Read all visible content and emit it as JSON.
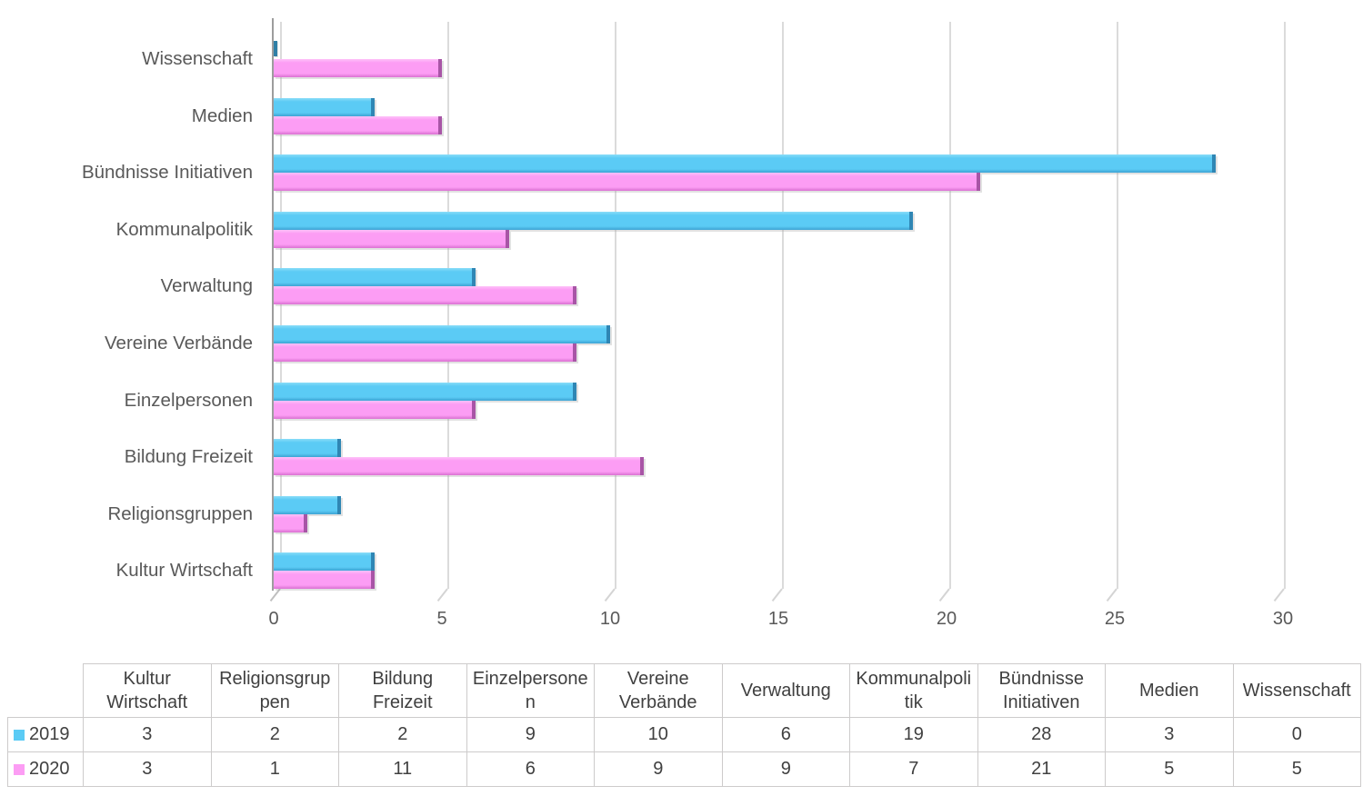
{
  "chart_data": {
    "type": "bar",
    "orientation": "horizontal",
    "title": "",
    "xlabel": "",
    "ylabel": "",
    "categories": [
      "Kultur Wirtschaft",
      "Religionsgruppen",
      "Bildung Freizeit",
      "Einzelpersonen",
      "Vereine Verbände",
      "Verwaltung",
      "Kommunalpolitik",
      "Bündnisse Initiativen",
      "Medien",
      "Wissenschaft"
    ],
    "categories_rendered_top_to_bottom": [
      "Wissenschaft",
      "Medien",
      "Bündnisse Initiativen",
      "Kommunalpolitik",
      "Verwaltung",
      "Vereine Verbände",
      "Einzelpersonen",
      "Bildung Freizeit",
      "Religionsgruppen",
      "Kultur Wirtschaft"
    ],
    "series": [
      {
        "name": "2019",
        "color": "#5BCBF5",
        "values": [
          3,
          2,
          2,
          9,
          10,
          6,
          19,
          28,
          3,
          0
        ]
      },
      {
        "name": "2020",
        "color": "#FC9DF4",
        "values": [
          3,
          1,
          11,
          6,
          9,
          9,
          7,
          21,
          5,
          5
        ]
      }
    ],
    "xlim": [
      0,
      30
    ],
    "xticks": [
      0,
      5,
      10,
      15,
      20,
      25,
      30
    ],
    "grid": true,
    "legend_position": "data-table-below-chart"
  },
  "table": {
    "corner_label": "",
    "columns": [
      "Kultur Wirtschaft",
      "Religionsgruppen",
      "Bildung Freizeit",
      "Einzelpersonen",
      "Vereine Verbände",
      "Verwaltung",
      "Kommunalpolitik",
      "Bündnisse Initiativen",
      "Medien",
      "Wissenschaft"
    ],
    "rows": [
      {
        "label": "2019",
        "swatch_color": "#5BCBF5",
        "values": [
          3,
          2,
          2,
          9,
          10,
          6,
          19,
          28,
          3,
          0
        ]
      },
      {
        "label": "2020",
        "swatch_color": "#FC9DF4",
        "values": [
          3,
          1,
          11,
          6,
          9,
          9,
          7,
          21,
          5,
          5
        ]
      }
    ]
  },
  "colors": {
    "background": "#FFFFFF",
    "gridline": "#DBDBDB",
    "axis_line": "#9D9D9D",
    "tick_label": "#595959",
    "category_label": "#595959",
    "table_text": "#404040",
    "table_border": "#CDCBCB",
    "series_2019": "#5BCBF5",
    "series_2020": "#FC9DF4"
  }
}
